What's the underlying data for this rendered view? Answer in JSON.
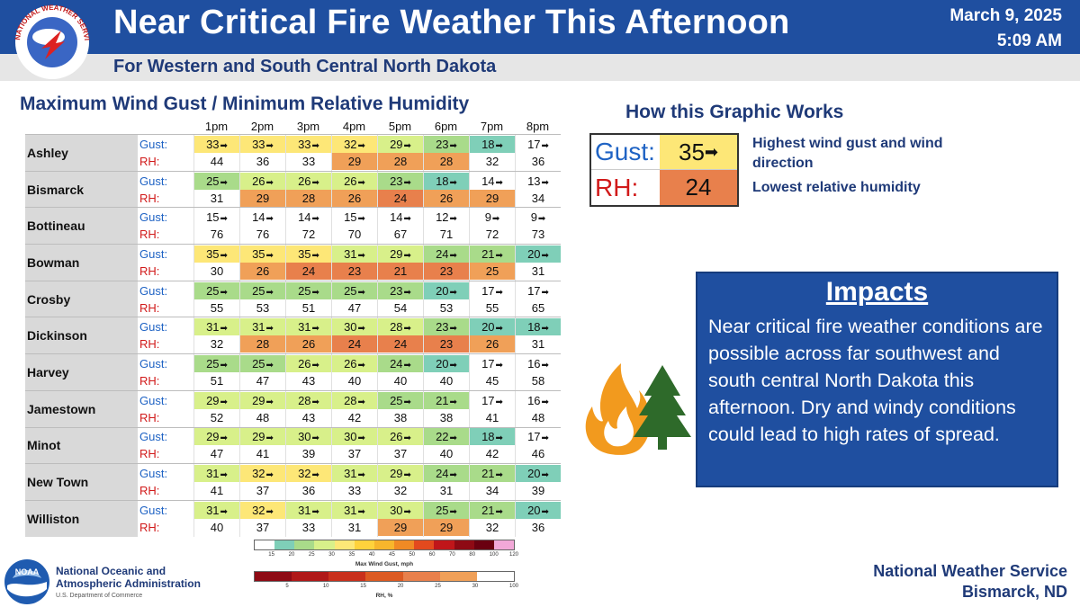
{
  "header": {
    "title": "Near Critical Fire Weather This Afternoon",
    "subtitle": "For Western and South Central North Dakota",
    "date": "March 9, 2025",
    "time": "5:09 AM",
    "logo_text": "NATIONAL WEATHER SERVICE"
  },
  "table": {
    "title": "Maximum Wind Gust / Minimum Relative Humidity",
    "gust_label": "Gust:",
    "rh_label": "RH:",
    "hours": [
      "1pm",
      "2pm",
      "3pm",
      "4pm",
      "5pm",
      "6pm",
      "7pm",
      "8pm"
    ],
    "locations": [
      {
        "name": "Ashley",
        "gust": [
          "33",
          "33",
          "33",
          "32",
          "29",
          "23",
          "18",
          "17"
        ],
        "rh": [
          "44",
          "36",
          "33",
          "29",
          "28",
          "28",
          "32",
          "36"
        ]
      },
      {
        "name": "Bismarck",
        "gust": [
          "25",
          "26",
          "26",
          "26",
          "23",
          "18",
          "14",
          "13"
        ],
        "rh": [
          "31",
          "29",
          "28",
          "26",
          "24",
          "26",
          "29",
          "34"
        ]
      },
      {
        "name": "Bottineau",
        "gust": [
          "15",
          "14",
          "14",
          "15",
          "14",
          "12",
          "9",
          "9"
        ],
        "rh": [
          "76",
          "76",
          "72",
          "70",
          "67",
          "71",
          "72",
          "73"
        ]
      },
      {
        "name": "Bowman",
        "gust": [
          "35",
          "35",
          "35",
          "31",
          "29",
          "24",
          "21",
          "20"
        ],
        "rh": [
          "30",
          "26",
          "24",
          "23",
          "21",
          "23",
          "25",
          "31"
        ]
      },
      {
        "name": "Crosby",
        "gust": [
          "25",
          "25",
          "25",
          "25",
          "23",
          "20",
          "17",
          "17"
        ],
        "rh": [
          "55",
          "53",
          "51",
          "47",
          "54",
          "53",
          "55",
          "65"
        ]
      },
      {
        "name": "Dickinson",
        "gust": [
          "31",
          "31",
          "31",
          "30",
          "28",
          "23",
          "20",
          "18"
        ],
        "rh": [
          "32",
          "28",
          "26",
          "24",
          "24",
          "23",
          "26",
          "31"
        ]
      },
      {
        "name": "Harvey",
        "gust": [
          "25",
          "25",
          "26",
          "26",
          "24",
          "20",
          "17",
          "16"
        ],
        "rh": [
          "51",
          "47",
          "43",
          "40",
          "40",
          "40",
          "45",
          "58"
        ]
      },
      {
        "name": "Jamestown",
        "gust": [
          "29",
          "29",
          "28",
          "28",
          "25",
          "21",
          "17",
          "16"
        ],
        "rh": [
          "52",
          "48",
          "43",
          "42",
          "38",
          "38",
          "41",
          "48"
        ]
      },
      {
        "name": "Minot",
        "gust": [
          "29",
          "29",
          "30",
          "30",
          "26",
          "22",
          "18",
          "17"
        ],
        "rh": [
          "47",
          "41",
          "39",
          "37",
          "37",
          "40",
          "42",
          "46"
        ]
      },
      {
        "name": "New Town",
        "gust": [
          "31",
          "32",
          "32",
          "31",
          "29",
          "24",
          "21",
          "20"
        ],
        "rh": [
          "41",
          "37",
          "36",
          "33",
          "32",
          "31",
          "34",
          "39"
        ]
      },
      {
        "name": "Williston",
        "gust": [
          "31",
          "32",
          "31",
          "31",
          "30",
          "25",
          "21",
          "20"
        ],
        "rh": [
          "40",
          "37",
          "33",
          "31",
          "29",
          "29",
          "32",
          "36"
        ]
      }
    ]
  },
  "legend": {
    "gust_ticks": [
      "15",
      "20",
      "25",
      "30",
      "35",
      "40",
      "45",
      "50",
      "60",
      "70",
      "80",
      "100",
      "120"
    ],
    "gust_caption": "Max Wind Gust, mph",
    "rh_ticks": [
      "5",
      "10",
      "15",
      "20",
      "25",
      "30",
      "100"
    ],
    "rh_caption": "RH, %"
  },
  "how": {
    "title": "How this Graphic Works",
    "gust_label": "Gust:",
    "rh_label": "RH:",
    "gust_value": "35",
    "rh_value": "24",
    "explain_gust": "Highest wind gust and wind direction",
    "explain_rh": "Lowest relative humidity"
  },
  "impacts": {
    "title": "Impacts",
    "text": "Near critical fire weather conditions are possible across far southwest and south central North Dakota this afternoon. Dry and windy conditions could lead to high rates of spread."
  },
  "footer": {
    "noaa_name_line1": "National Oceanic and",
    "noaa_name_line2": "Atmospheric Administration",
    "noaa_dept": "U.S. Department of Commerce",
    "noaa_logo_text": "NOAA",
    "office_line1": "National Weather Service",
    "office_line2": "Bismarck, ND"
  },
  "colors": {
    "header_blue": "#1f4fa0",
    "gust_yellow": "#fde777",
    "gust_lime": "#d8f08a",
    "gust_green": "#a9db8a",
    "gust_teal": "#7fcfb8",
    "rh_orange": "#f0a058",
    "rh_deep": "#e8804c"
  }
}
